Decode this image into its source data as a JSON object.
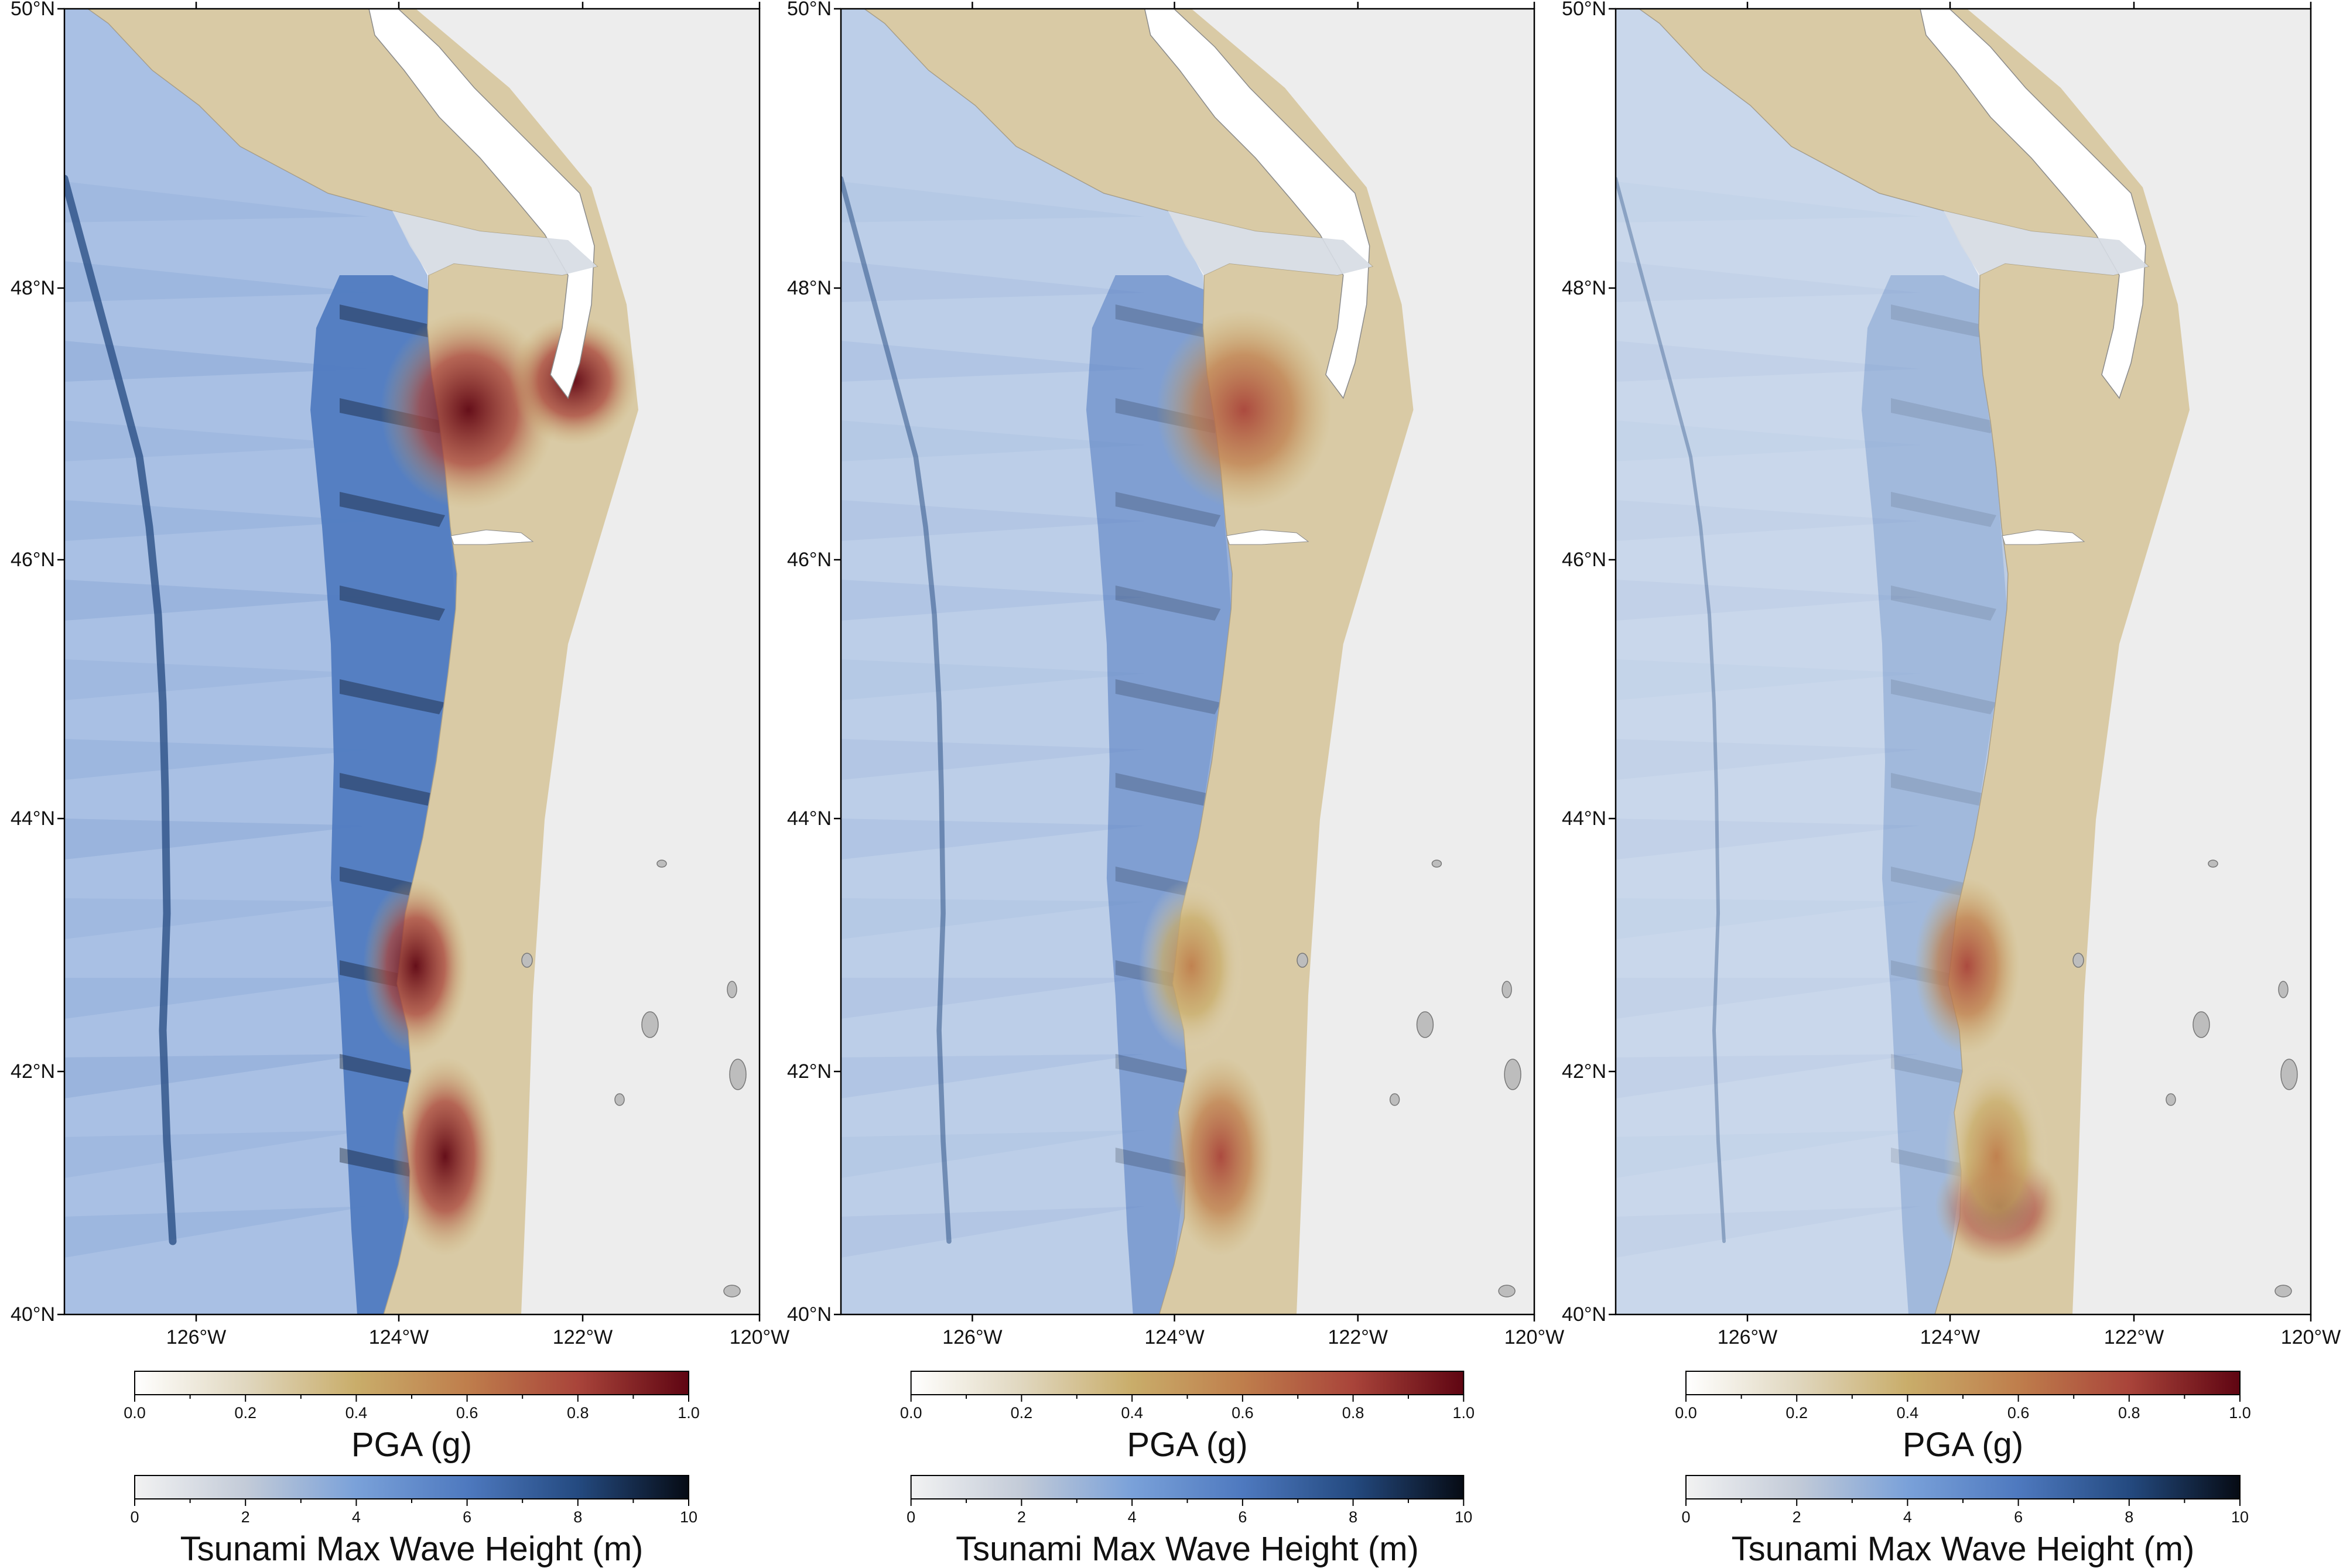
{
  "figure": {
    "panels": [
      {
        "id": "left",
        "lon_labels": [
          "126°W",
          "124°W",
          "122°W",
          "120°W"
        ],
        "lat_labels": [
          "40°N",
          "42°N",
          "44°N",
          "46°N",
          "48°N",
          "50°N"
        ],
        "tsunami_band_intensity": "high",
        "pga_hotspots": [
          "Olympic Peninsula / Puget Sound",
          "Southern Oregon coast",
          "Northern California coast"
        ],
        "pga_colorbar": {
          "title": "PGA (g)",
          "ticks": [
            "0.0",
            "0.2",
            "0.4",
            "0.6",
            "0.8",
            "1.0"
          ]
        },
        "wave_colorbar": {
          "title": "Tsunami Max Wave Height (m)",
          "ticks": [
            "0",
            "2",
            "4",
            "6",
            "8",
            "10"
          ]
        }
      },
      {
        "id": "middle",
        "lon_labels": [
          "126°W",
          "124°W",
          "122°W",
          "120°W"
        ],
        "lat_labels": [
          "40°N",
          "42°N",
          "44°N",
          "46°N",
          "48°N",
          "50°N"
        ],
        "tsunami_band_intensity": "moderate",
        "pga_hotspots": [
          "Olympic Peninsula coast",
          "Southern Oregon coast"
        ],
        "pga_colorbar": {
          "title": "PGA (g)",
          "ticks": [
            "0.0",
            "0.2",
            "0.4",
            "0.6",
            "0.8",
            "1.0"
          ]
        },
        "wave_colorbar": {
          "title": "Tsunami Max Wave Height (m)",
          "ticks": [
            "0",
            "2",
            "4",
            "6",
            "8",
            "10"
          ]
        }
      },
      {
        "id": "right",
        "lon_labels": [
          "126°W",
          "124°W",
          "122°W",
          "120°W"
        ],
        "lat_labels": [
          "40°N",
          "42°N",
          "44°N",
          "46°N",
          "48°N",
          "50°N"
        ],
        "tsunami_band_intensity": "low",
        "pga_hotspots": [
          "Southern Oregon coast",
          "Northern California (Cape Mendocino)"
        ],
        "pga_colorbar": {
          "title": "PGA (g)",
          "ticks": [
            "0.0",
            "0.2",
            "0.4",
            "0.6",
            "0.8",
            "1.0"
          ]
        },
        "wave_colorbar": {
          "title": "Tsunami Max Wave Height (m)",
          "ticks": [
            "0",
            "2",
            "4",
            "6",
            "8",
            "10"
          ]
        }
      }
    ],
    "colors": {
      "pga_scale": [
        "#ffffff",
        "#e0d7bf",
        "#c9ad6a",
        "#bf7e4c",
        "#a9443a",
        "#5f0512"
      ],
      "wave_scale": [
        "#f2f2f2",
        "#c3cbd8",
        "#7aa1d9",
        "#4e79bf",
        "#244a80",
        "#060b14"
      ],
      "ocean_base": "#f2f3f5",
      "land_base": "#ededed",
      "water_body": "#ffffff",
      "lake_fill": "#bdbdbd"
    }
  }
}
